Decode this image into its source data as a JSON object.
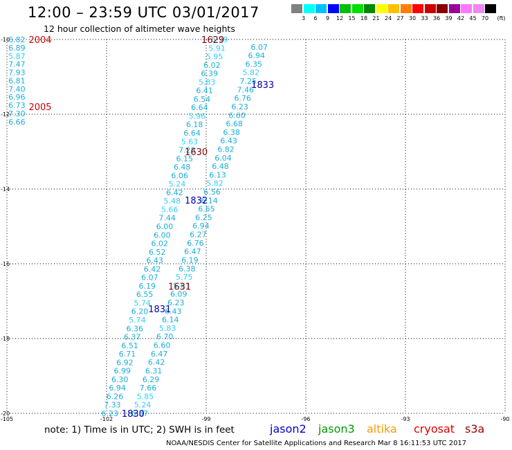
{
  "header": {
    "title": "12:00 – 23:59 UTC 03/01/2017",
    "subtitle": "12 hour collection of altimeter wave heights"
  },
  "colorbar": {
    "unit": "(ft)",
    "colors": [
      "#808080",
      "#00ffff",
      "#00bfff",
      "#0000ff",
      "#00c000",
      "#00e000",
      "#008800",
      "#ffff00",
      "#ffc000",
      "#ff8000",
      "#ff0000",
      "#cc0000",
      "#880000",
      "#990099",
      "#ff77ff",
      "#ee88ee",
      "#000000"
    ],
    "labels": [
      "3",
      "6",
      "9",
      "12",
      "15",
      "18",
      "21",
      "24",
      "27",
      "30",
      "33",
      "36",
      "39",
      "42",
      "45",
      "70"
    ]
  },
  "chart_data": {
    "type": "map-track",
    "lon_range": [
      -105,
      -90
    ],
    "lat_range": [
      -20,
      -10
    ],
    "lon_ticks": [
      "-105",
      "-102",
      "-99",
      "-96",
      "-93",
      "-90"
    ],
    "lat_ticks": [
      "-10",
      "-12",
      "-14",
      "-16",
      "-18",
      "-20"
    ],
    "track_labels": [
      {
        "text": "2004",
        "lon": -104.0,
        "lat": -10.0,
        "color": "#cc0000"
      },
      {
        "text": "2005",
        "lon": -104.0,
        "lat": -11.8,
        "color": "#cc0000"
      },
      {
        "text": "1629",
        "lon": -98.8,
        "lat": -10.0,
        "color": "#880000"
      },
      {
        "text": "1833",
        "lon": -97.3,
        "lat": -11.2,
        "color": "#0000aa"
      },
      {
        "text": "1630",
        "lon": -99.3,
        "lat": -13.0,
        "color": "#880000"
      },
      {
        "text": "1832",
        "lon": -99.3,
        "lat": -14.3,
        "color": "#0000aa"
      },
      {
        "text": "1631",
        "lon": -99.8,
        "lat": -16.6,
        "color": "#880000"
      },
      {
        "text": "1831",
        "lon": -100.4,
        "lat": -17.2,
        "color": "#0000aa"
      },
      {
        "text": "1830",
        "lon": -101.2,
        "lat": -20.0,
        "color": "#0000aa"
      }
    ],
    "tracks": [
      {
        "name": "track-2004",
        "lon_start": -104.7,
        "lat_start": -10.0,
        "lon_end": -104.7,
        "lat_end": -12.2,
        "values": [
          "6.82",
          "6.89",
          "5.87",
          "7.47",
          "7.93",
          "6.81",
          "7.40",
          "6.96",
          "6.73",
          "7.30",
          "6.66"
        ]
      },
      {
        "name": "track-1629",
        "lon_start": -98.6,
        "lat_start": -10.0,
        "lon_end": -101.9,
        "lat_end": -20.0,
        "values": [
          "5.39",
          "5.91",
          "5.95",
          "6.02",
          "6.39",
          "5.83",
          "6.41",
          "6.54",
          "6.64",
          "5.96",
          "6.18",
          "6.64",
          "5.63",
          "7.28",
          "6.15",
          "6.48",
          "6.06",
          "5.24",
          "6.42",
          "5.48",
          "5.66",
          "7.44",
          "6.00",
          "6.00",
          "6.02",
          "6.52",
          "6.43",
          "6.42",
          "6.07",
          "6.19",
          "6.55",
          "5.74",
          "6.20",
          "5.74",
          "6.36",
          "6.37",
          "6.51",
          "6.71",
          "6.92",
          "6.99",
          "6.30",
          "6.94",
          "6.26",
          "7.33",
          "6.23"
        ]
      },
      {
        "name": "track-1833",
        "lon_start": -97.4,
        "lat_start": -10.2,
        "lon_end": -101.0,
        "lat_end": -20.0,
        "values": [
          "6.07",
          "6.94",
          "6.35",
          "5.82",
          "7.25",
          "7.46",
          "6.76",
          "6.23",
          "6.60",
          "6.68",
          "6.38",
          "6.43",
          "6.82",
          "6.04",
          "6.48",
          "6.13",
          "5.82",
          "6.56",
          "6.14",
          "6.65",
          "6.25",
          "6.94",
          "6.27",
          "6.76",
          "6.47",
          "6.19",
          "6.38",
          "5.75",
          "5.63",
          "6.09",
          "6.23",
          "6.43",
          "6.14",
          "5.83",
          "6.70",
          "6.60",
          "6.47",
          "6.42",
          "6.31",
          "6.29",
          "7.66",
          "5.85",
          "5.24",
          "6.37"
        ]
      }
    ]
  },
  "footer": {
    "note": "note: 1) Time is in UTC; 2) SWH is in feet",
    "legend": [
      {
        "name": "jason2",
        "color": "#0000cc"
      },
      {
        "name": "jason3",
        "color": "#009900"
      },
      {
        "name": "altika",
        "color": "#ff9900"
      },
      {
        "name": "cryosat",
        "color": "#dd0000"
      },
      {
        "name": "s3a",
        "color": "#990000"
      }
    ],
    "credit": "NOAA/NESDIS Center for Satellite Applications and Research    Mar  8 16:11:53 UTC 2017"
  }
}
